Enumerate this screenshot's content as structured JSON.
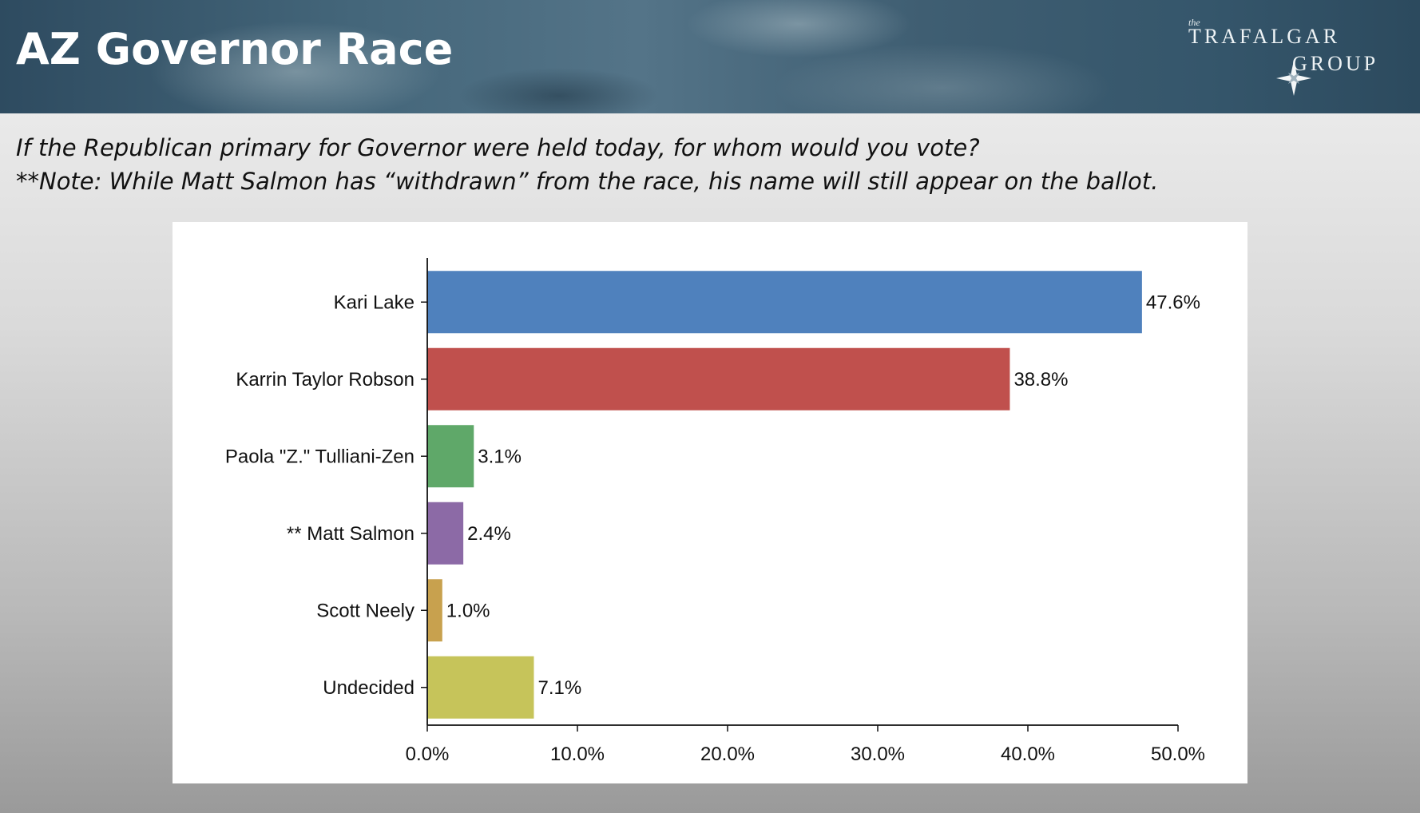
{
  "header": {
    "title": "AZ Governor Race",
    "logo": {
      "small_text": "the",
      "line1": "TRAFALGAR",
      "line2": "GROUP"
    }
  },
  "question": {
    "line1": "If the Republican primary for Governor were held today, for whom would you vote?",
    "line2": "**Note: While Matt Salmon has “withdrawn” from the race, his name will still appear on the ballot."
  },
  "chart_data": {
    "type": "bar",
    "orientation": "horizontal",
    "title": "",
    "xlabel": "",
    "ylabel": "",
    "xlim": [
      0,
      50
    ],
    "xticks": [
      "0.0%",
      "10.0%",
      "20.0%",
      "30.0%",
      "40.0%",
      "50.0%"
    ],
    "grid": false,
    "categories": [
      "Kari Lake",
      "Karrin Taylor Robson",
      "Paola \"Z.\" Tulliani-Zen",
      "** Matt Salmon",
      "Scott Neely",
      "Undecided"
    ],
    "values": [
      47.6,
      38.8,
      3.1,
      2.4,
      1.0,
      7.1
    ],
    "value_labels": [
      "47.6%",
      "38.8%",
      "3.1%",
      "2.4%",
      "1.0%",
      "7.1%"
    ],
    "colors": [
      "#4f81bd",
      "#c0504d",
      "#5fa869",
      "#8c6aa6",
      "#c8a14e",
      "#c6c45a"
    ]
  }
}
